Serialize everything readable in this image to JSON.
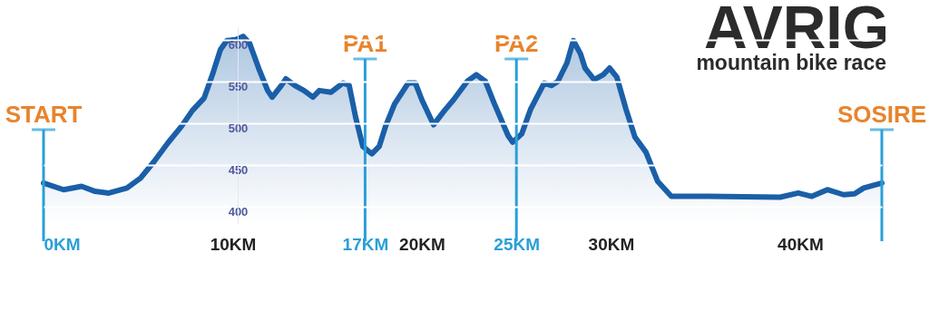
{
  "chart_data": {
    "type": "area",
    "title": "AVRIG",
    "subtitle": "mountain bike race",
    "x": [
      0,
      1.06,
      2.01,
      2.73,
      3.45,
      4.41,
      5.13,
      5.85,
      6.57,
      7.29,
      7.87,
      8.49,
      8.97,
      9.35,
      9.69,
      10.17,
      10.55,
      10.89,
      11.37,
      11.85,
      12.09,
      12.57,
      12.81,
      13.29,
      13.77,
      14.24,
      14.58,
      15.2,
      15.83,
      16.16,
      16.5,
      16.88,
      17.36,
      17.75,
      18.08,
      18.56,
      19.28,
      19.66,
      20.0,
      20.62,
      21.2,
      21.68,
      22.4,
      22.88,
      23.36,
      23.84,
      24.56,
      24.8,
      25.28,
      25.76,
      26.47,
      26.86,
      27.19,
      27.67,
      28.01,
      28.39,
      28.63,
      29.11,
      29.59,
      29.93,
      30.31,
      30.79,
      31.27,
      31.85,
      32.47,
      33.19,
      35.11,
      38.94,
      39.9,
      40.62,
      41.44,
      42.3,
      42.88,
      43.36,
      44.32
    ],
    "series": [
      {
        "color": "#1a5fa8",
        "values": [
          428,
          420,
          424,
          418,
          416,
          422,
          434,
          454,
          476,
          496,
          515,
          530,
          561,
          588,
          599,
          600,
          604,
          596,
          566,
          539,
          531,
          545,
          553,
          545,
          539,
          531,
          539,
          537,
          548,
          545,
          507,
          472,
          463,
          472,
          496,
          523,
          548,
          548,
          528,
          498,
          515,
          528,
          550,
          558,
          550,
          523,
          485,
          477,
          487,
          517,
          548,
          545,
          550,
          572,
          599,
          583,
          566,
          552,
          558,
          566,
          555,
          517,
          483,
          465,
          430,
          412,
          412,
          411,
          416,
          412,
          420,
          414,
          415,
          422,
          428
        ]
      }
    ],
    "xlim": [
      0,
      44.32
    ],
    "ylim": [
      380,
      615
    ],
    "xticks": [
      {
        "value": 0,
        "label": "0KM"
      },
      {
        "value": 10,
        "label": "10KM"
      },
      {
        "value": 17,
        "label": "17KM"
      },
      {
        "value": 20,
        "label": "20KM"
      },
      {
        "value": 25,
        "label": "25KM"
      },
      {
        "value": 30,
        "label": "30KM"
      },
      {
        "value": 40,
        "label": "40KM"
      }
    ],
    "yticks": [
      400,
      450,
      500,
      550,
      600
    ],
    "grid": "y",
    "ref_lines": [
      {
        "axis": "x",
        "value": 0,
        "label": "START",
        "color": "#2a9fd8"
      },
      {
        "axis": "x",
        "value": 17,
        "label": "PA1",
        "color": "#2a9fd8"
      },
      {
        "axis": "x",
        "value": 25,
        "label": "PA2",
        "color": "#2a9fd8"
      },
      {
        "axis": "x",
        "value": 44.32,
        "label": "SOSIRE",
        "color": "#2a9fd8"
      }
    ]
  }
}
